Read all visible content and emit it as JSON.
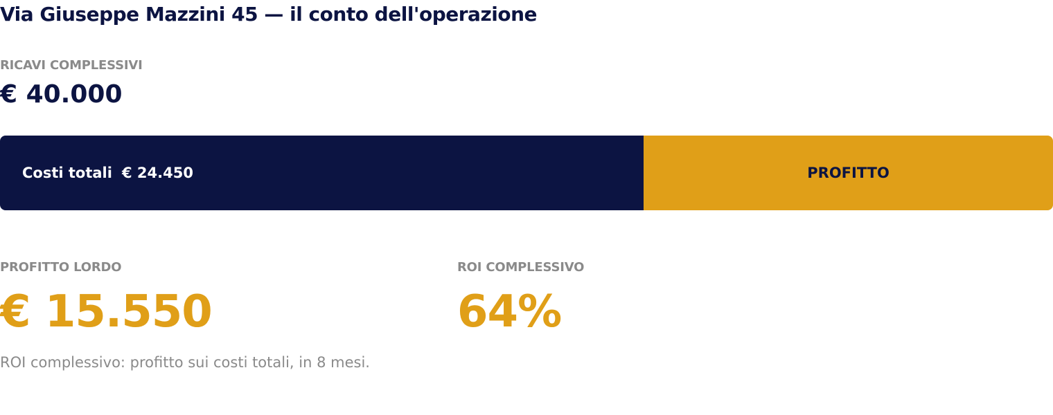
{
  "page": {
    "title": "Via Giuseppe Mazzini 45 — il conto dell'operazione"
  },
  "revenue": {
    "label": "RICAVI COMPLESSIVI",
    "value": "€ 40.000",
    "amount": 40000
  },
  "breakdown": {
    "costs_label": "Costi totali",
    "costs_value": "€ 24.450",
    "costs_amount": 24450,
    "profit_label": "PROFITTO",
    "profit_amount": 15550
  },
  "gross_profit": {
    "label": "PROFITTO LORDO",
    "value": "€ 15.550"
  },
  "roi": {
    "label": "ROI COMPLESSIVO",
    "value": "64%"
  },
  "footnote": "ROI complessivo: profitto sui costi totali, in 8 mesi.",
  "colors": {
    "navy": "#0c1442",
    "gold": "#e09f18",
    "muted": "#8a8a8a"
  }
}
